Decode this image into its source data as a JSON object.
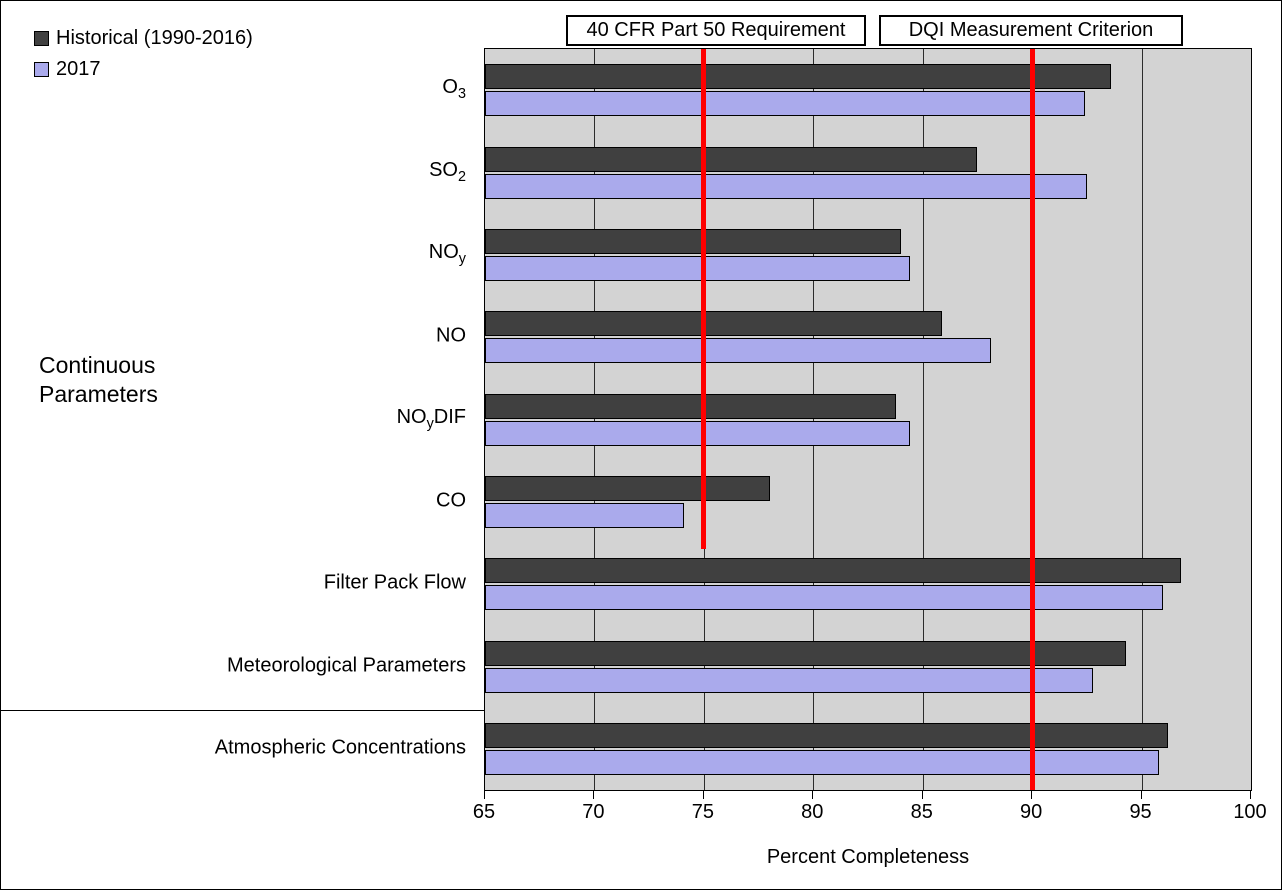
{
  "legend": {
    "items": [
      {
        "label": "Historical (1990-2016)",
        "color": "#404040"
      },
      {
        "label": "2017",
        "color": "#aaaaec"
      }
    ]
  },
  "annotations": {
    "cfr_box": "40 CFR Part 50 Requirement",
    "dqi_box": "DQI Measurement Criterion"
  },
  "group_label": {
    "line1": "Continuous",
    "line2": "Parameters"
  },
  "colors": {
    "historical": "#404040",
    "y2017": "#aaaaec",
    "plot_background": "#d3d3d3",
    "reference_line": "#ff0000",
    "gridline": "#2b2b2b"
  },
  "chart_data": {
    "type": "bar",
    "orientation": "horizontal",
    "title": "",
    "xlabel": "Percent Completeness",
    "ylabel": "",
    "xlim": [
      65,
      100
    ],
    "xticks": [
      65,
      70,
      75,
      80,
      85,
      90,
      95,
      100
    ],
    "grid": true,
    "legend_position": "top-left",
    "categories": [
      "O3",
      "SO2",
      "NOy",
      "NO",
      "NOyDIF",
      "CO",
      "Filter Pack Flow",
      "Meteorological Parameters",
      "Atmospheric Concentrations"
    ],
    "category_segments": [
      [
        {
          "t": "O"
        },
        {
          "t": "3",
          "sub": true
        }
      ],
      [
        {
          "t": "SO"
        },
        {
          "t": "2",
          "sub": true
        }
      ],
      [
        {
          "t": "NO"
        },
        {
          "t": "y",
          "sub": true
        }
      ],
      [
        {
          "t": "NO"
        }
      ],
      [
        {
          "t": "NO"
        },
        {
          "t": "y",
          "sub": true
        },
        {
          "t": "DIF"
        }
      ],
      [
        {
          "t": "CO"
        }
      ],
      [
        {
          "t": "Filter Pack Flow"
        }
      ],
      [
        {
          "t": "Meteorological Parameters"
        }
      ],
      [
        {
          "t": "Atmospheric Concentrations"
        }
      ]
    ],
    "series": [
      {
        "name": "Historical (1990-2016)",
        "color": "#404040",
        "values": [
          93.6,
          87.5,
          84.0,
          85.9,
          83.8,
          78.0,
          96.8,
          94.3,
          96.2
        ]
      },
      {
        "name": "2017",
        "color": "#aaaaec",
        "values": [
          92.4,
          92.5,
          84.4,
          88.1,
          84.4,
          74.1,
          96.0,
          92.8,
          95.8
        ]
      }
    ],
    "reference_lines": [
      {
        "label": "40 CFR Part 50 Requirement",
        "x": 75,
        "color": "#ff0000",
        "extent": "continuous-parameters-only"
      },
      {
        "label": "DQI Measurement Criterion",
        "x": 90,
        "color": "#ff0000",
        "extent": "full"
      }
    ]
  }
}
